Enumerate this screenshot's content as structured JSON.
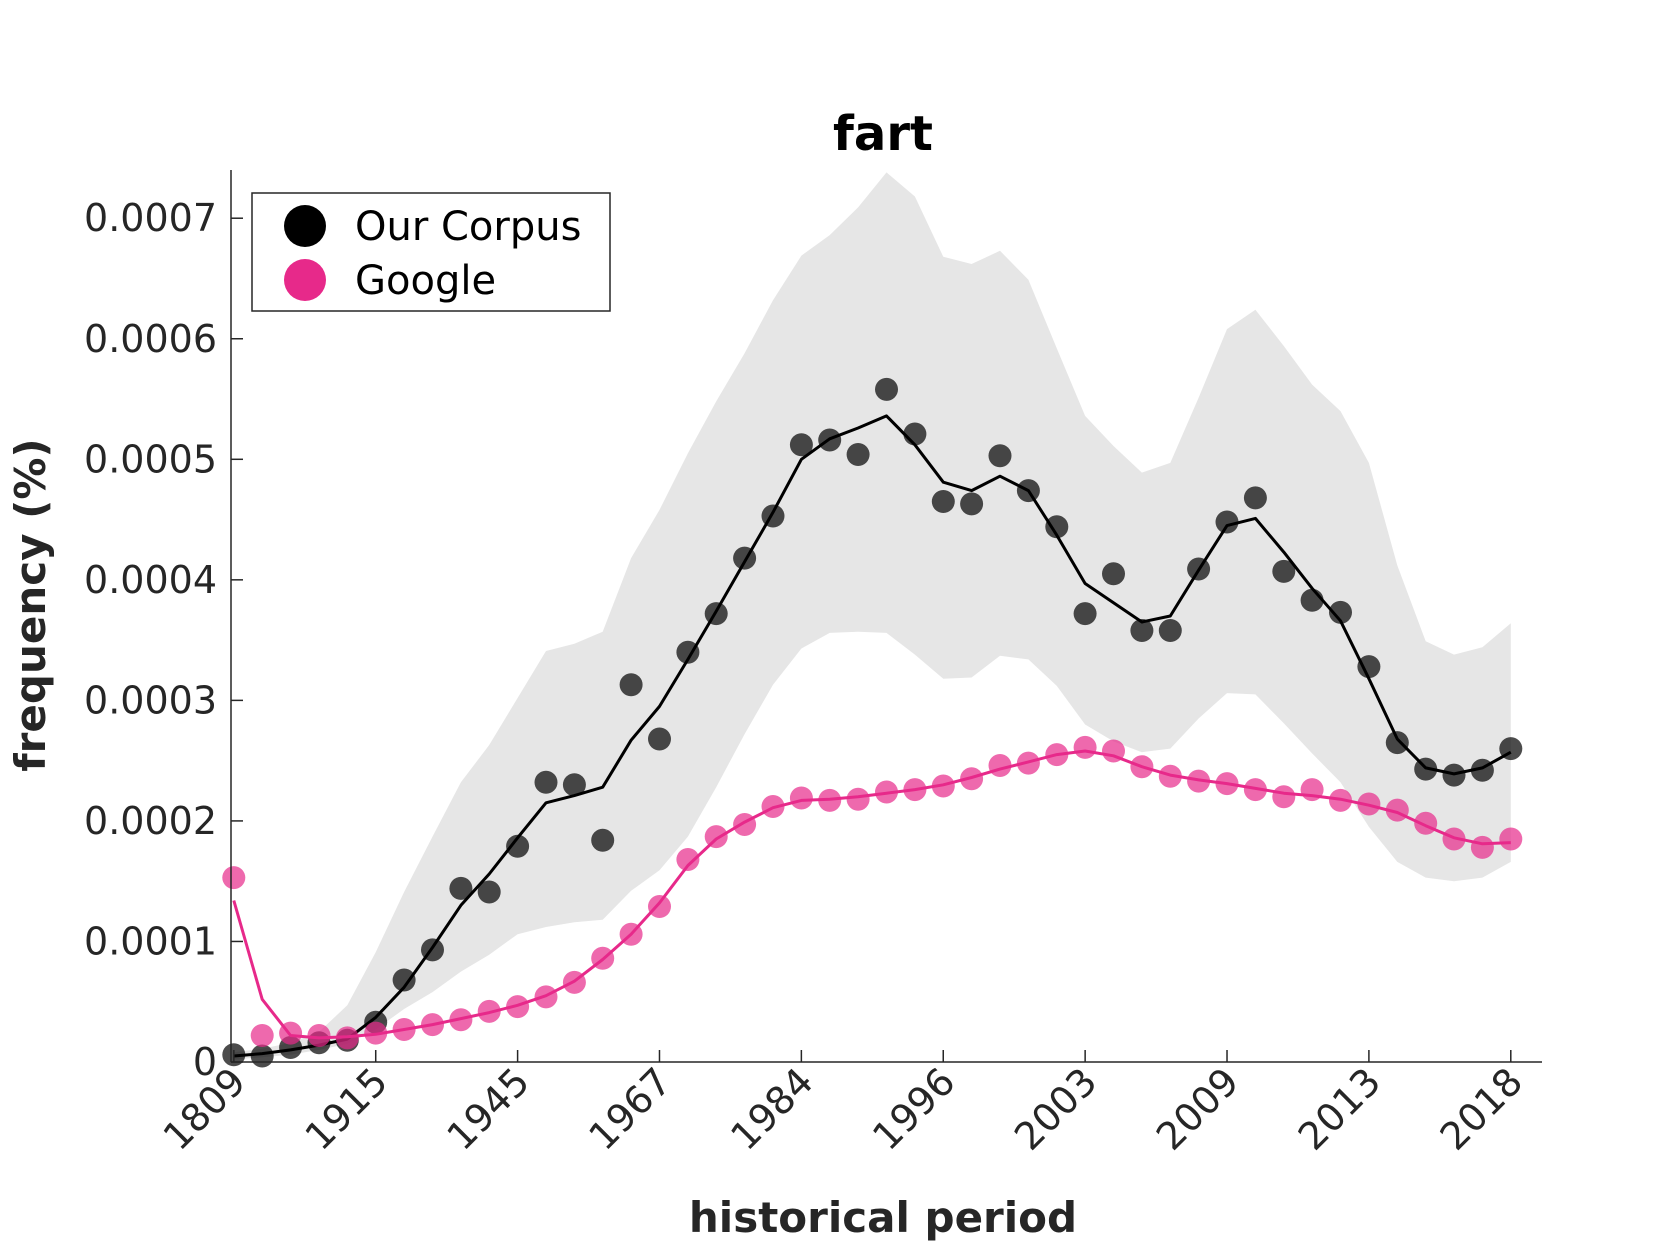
{
  "chart_data": {
    "type": "line",
    "title": "fart",
    "xlabel": "historical period",
    "ylabel": "frequency (%)",
    "x_tick_labels": [
      "1809",
      "1915",
      "1945",
      "1967",
      "1984",
      "1996",
      "2003",
      "2009",
      "2013",
      "2018"
    ],
    "y_tick_labels": [
      "0",
      "0.0001",
      "0.0002",
      "0.0003",
      "0.0004",
      "0.0005",
      "0.0006",
      "0.0007"
    ],
    "y_ticks": [
      0,
      0.0001,
      0.0002,
      0.0003,
      0.0004,
      0.0005,
      0.0006,
      0.0007
    ],
    "ylim": [
      0,
      0.00074
    ],
    "xlim": [
      -0.1,
      46.1
    ],
    "grid": false,
    "legend": {
      "location": "top-left",
      "entries": [
        "Our Corpus",
        "Google"
      ]
    },
    "series": [
      {
        "name": "Our Corpus",
        "color": "#000000",
        "points": [
          6e-06,
          5e-06,
          1.2e-05,
          1.6e-05,
          1.8e-05,
          3.3e-05,
          6.8e-05,
          9.3e-05,
          0.000144,
          0.000141,
          0.000179,
          0.000232,
          0.00023,
          0.000184,
          0.000313,
          0.000268,
          0.00034,
          0.000372,
          0.000418,
          0.000453,
          0.000512,
          0.000516,
          0.000504,
          0.000558,
          0.000521,
          0.000465,
          0.000463,
          0.000503,
          0.000474,
          0.000444,
          0.000372,
          0.000405,
          0.000358,
          0.000358,
          0.000409,
          0.000448,
          0.000468,
          0.000407,
          0.000383,
          0.000373,
          0.000328,
          0.000265,
          0.000243,
          0.000238,
          0.000242,
          0.00026
        ],
        "smooth": [
          5e-06,
          7e-06,
          1e-05,
          1.4e-05,
          1.9e-05,
          3.7e-05,
          6.2e-05,
          9.5e-05,
          0.00013,
          0.000156,
          0.000186,
          0.000215,
          0.000221,
          0.000228,
          0.000267,
          0.000295,
          0.000334,
          0.000374,
          0.000415,
          0.000456,
          0.0005,
          0.000517,
          0.000526,
          0.000536,
          0.000512,
          0.000481,
          0.000474,
          0.000486,
          0.000474,
          0.000437,
          0.000397,
          0.000381,
          0.000365,
          0.00037,
          0.000408,
          0.000445,
          0.000451,
          0.000423,
          0.000393,
          0.000366,
          0.000318,
          0.000268,
          0.000244,
          0.000239,
          0.000244,
          0.000257
        ],
        "band_upper": [
          8e-06,
          1.1e-05,
          1.6e-05,
          2.5e-05,
          4.7e-05,
          9.1e-05,
          0.000141,
          0.000187,
          0.000232,
          0.000263,
          0.000302,
          0.000341,
          0.000347,
          0.000357,
          0.000418,
          0.000458,
          0.000505,
          0.000548,
          0.000588,
          0.000632,
          0.000669,
          0.000686,
          0.000709,
          0.000738,
          0.000718,
          0.000668,
          0.000662,
          0.000673,
          0.000649,
          0.000592,
          0.000536,
          0.000511,
          0.000489,
          0.000497,
          0.000551,
          0.000608,
          0.000624,
          0.000594,
          0.000562,
          0.00054,
          0.000497,
          0.000412,
          0.000349,
          0.000338,
          0.000344,
          0.000364
        ],
        "band_lower": [
          2e-06,
          4e-06,
          6e-06,
          1e-05,
          1.5e-05,
          2.7e-05,
          4.4e-05,
          5.8e-05,
          7.5e-05,
          8.9e-05,
          0.000106,
          0.000112,
          0.000116,
          0.000118,
          0.000142,
          0.000159,
          0.000187,
          0.000228,
          0.000272,
          0.000313,
          0.000343,
          0.000356,
          0.000357,
          0.000356,
          0.000338,
          0.000318,
          0.000319,
          0.000337,
          0.000334,
          0.000312,
          0.00028,
          0.000266,
          0.000257,
          0.00026,
          0.000285,
          0.000306,
          0.000305,
          0.000281,
          0.000256,
          0.000232,
          0.000195,
          0.000166,
          0.000153,
          0.00015,
          0.000153,
          0.000166
        ]
      },
      {
        "name": "Google",
        "color": "#e7298a",
        "points": [
          0.000153,
          2.2e-05,
          2.4e-05,
          2.2e-05,
          2e-05,
          2.4e-05,
          2.7e-05,
          3.1e-05,
          3.5e-05,
          4.2e-05,
          4.6e-05,
          5.4e-05,
          6.6e-05,
          8.6e-05,
          0.000106,
          0.000129,
          0.000168,
          0.000187,
          0.000197,
          0.000212,
          0.000219,
          0.000217,
          0.000218,
          0.000224,
          0.000226,
          0.000229,
          0.000235,
          0.000246,
          0.000248,
          0.000255,
          0.000261,
          0.000258,
          0.000245,
          0.000237,
          0.000233,
          0.000231,
          0.000226,
          0.00022,
          0.000226,
          0.000217,
          0.000214,
          0.000209,
          0.000198,
          0.000185,
          0.000178,
          0.000185
        ],
        "smooth": [
          0.000134,
          5.2e-05,
          2.2e-05,
          2e-05,
          2.1e-05,
          2.3e-05,
          2.7e-05,
          3.1e-05,
          3.6e-05,
          4.1e-05,
          4.7e-05,
          5.5e-05,
          6.7e-05,
          8.5e-05,
          0.000106,
          0.000132,
          0.000163,
          0.000185,
          0.000199,
          0.000211,
          0.000217,
          0.000218,
          0.00022,
          0.000223,
          0.000226,
          0.00023,
          0.000236,
          0.000243,
          0.000249,
          0.000255,
          0.000258,
          0.000254,
          0.000245,
          0.000238,
          0.000234,
          0.000231,
          0.000227,
          0.000223,
          0.000221,
          0.000218,
          0.000213,
          0.000207,
          0.000196,
          0.000186,
          0.000181,
          0.000182
        ]
      }
    ]
  }
}
